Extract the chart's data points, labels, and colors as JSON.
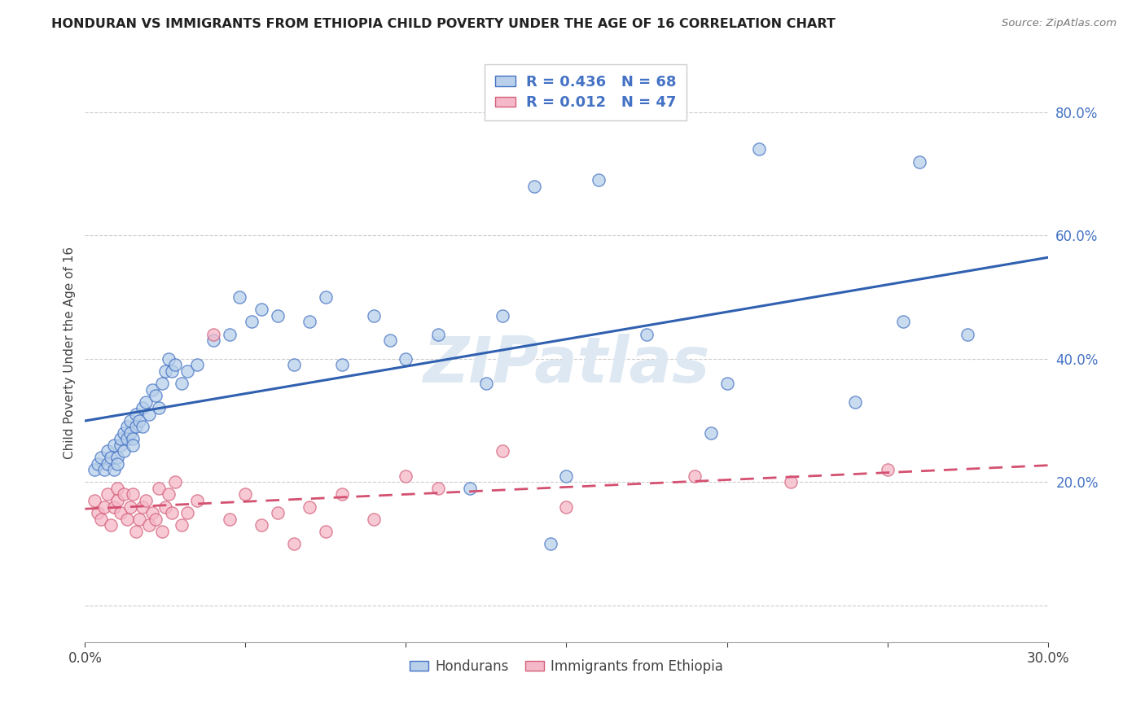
{
  "title": "HONDURAN VS IMMIGRANTS FROM ETHIOPIA CHILD POVERTY UNDER THE AGE OF 16 CORRELATION CHART",
  "source": "Source: ZipAtlas.com",
  "ylabel": "Child Poverty Under the Age of 16",
  "xlim": [
    0.0,
    0.3
  ],
  "ylim": [
    -0.06,
    0.88
  ],
  "ytick_vals": [
    0.0,
    0.2,
    0.4,
    0.6,
    0.8
  ],
  "ytick_labels": [
    "",
    "20.0%",
    "40.0%",
    "60.0%",
    "80.0%"
  ],
  "xtick_vals": [
    0.0,
    0.05,
    0.1,
    0.15,
    0.2,
    0.25,
    0.3
  ],
  "xtick_labels": [
    "0.0%",
    "",
    "",
    "",
    "",
    "",
    "30.0%"
  ],
  "legend_labels": [
    "Hondurans",
    "Immigrants from Ethiopia"
  ],
  "R_honduran": 0.436,
  "N_honduran": 68,
  "R_ethiopia": 0.012,
  "N_ethiopia": 47,
  "color_honduran_fill": "#b8d0ea",
  "color_honduran_edge": "#4472c4",
  "color_ethiopia_fill": "#f5b8c8",
  "color_ethiopia_edge": "#d4607a",
  "color_honduran_line": "#3060b0",
  "color_ethiopia_line": "#d45070",
  "color_text_blue": "#4472c4",
  "color_grid": "#cccccc",
  "background_color": "#ffffff",
  "honduran_x": [
    0.003,
    0.004,
    0.005,
    0.006,
    0.007,
    0.007,
    0.008,
    0.009,
    0.009,
    0.01,
    0.01,
    0.011,
    0.011,
    0.012,
    0.012,
    0.013,
    0.013,
    0.014,
    0.014,
    0.015,
    0.015,
    0.016,
    0.016,
    0.017,
    0.018,
    0.018,
    0.019,
    0.02,
    0.021,
    0.022,
    0.023,
    0.024,
    0.025,
    0.026,
    0.027,
    0.028,
    0.03,
    0.032,
    0.035,
    0.04,
    0.045,
    0.048,
    0.052,
    0.055,
    0.06,
    0.065,
    0.07,
    0.075,
    0.08,
    0.09,
    0.095,
    0.1,
    0.11,
    0.12,
    0.125,
    0.13,
    0.14,
    0.145,
    0.15,
    0.16,
    0.175,
    0.195,
    0.2,
    0.21,
    0.24,
    0.255,
    0.26,
    0.275
  ],
  "honduran_y": [
    0.22,
    0.23,
    0.24,
    0.22,
    0.23,
    0.25,
    0.24,
    0.26,
    0.22,
    0.24,
    0.23,
    0.26,
    0.27,
    0.25,
    0.28,
    0.27,
    0.29,
    0.28,
    0.3,
    0.27,
    0.26,
    0.29,
    0.31,
    0.3,
    0.32,
    0.29,
    0.33,
    0.31,
    0.35,
    0.34,
    0.32,
    0.36,
    0.38,
    0.4,
    0.38,
    0.39,
    0.36,
    0.38,
    0.39,
    0.43,
    0.44,
    0.5,
    0.46,
    0.48,
    0.47,
    0.39,
    0.46,
    0.5,
    0.39,
    0.47,
    0.43,
    0.4,
    0.44,
    0.19,
    0.36,
    0.47,
    0.68,
    0.1,
    0.21,
    0.69,
    0.44,
    0.28,
    0.36,
    0.74,
    0.33,
    0.46,
    0.72,
    0.44
  ],
  "ethiopia_x": [
    0.003,
    0.004,
    0.005,
    0.006,
    0.007,
    0.008,
    0.009,
    0.01,
    0.01,
    0.011,
    0.012,
    0.013,
    0.014,
    0.015,
    0.016,
    0.017,
    0.018,
    0.019,
    0.02,
    0.021,
    0.022,
    0.023,
    0.024,
    0.025,
    0.026,
    0.027,
    0.028,
    0.03,
    0.032,
    0.035,
    0.04,
    0.045,
    0.05,
    0.055,
    0.06,
    0.065,
    0.07,
    0.075,
    0.08,
    0.09,
    0.1,
    0.11,
    0.13,
    0.15,
    0.19,
    0.22,
    0.25
  ],
  "ethiopia_y": [
    0.17,
    0.15,
    0.14,
    0.16,
    0.18,
    0.13,
    0.16,
    0.19,
    0.17,
    0.15,
    0.18,
    0.14,
    0.16,
    0.18,
    0.12,
    0.14,
    0.16,
    0.17,
    0.13,
    0.15,
    0.14,
    0.19,
    0.12,
    0.16,
    0.18,
    0.15,
    0.2,
    0.13,
    0.15,
    0.17,
    0.44,
    0.14,
    0.18,
    0.13,
    0.15,
    0.1,
    0.16,
    0.12,
    0.18,
    0.14,
    0.21,
    0.19,
    0.25,
    0.16,
    0.21,
    0.2,
    0.22
  ]
}
